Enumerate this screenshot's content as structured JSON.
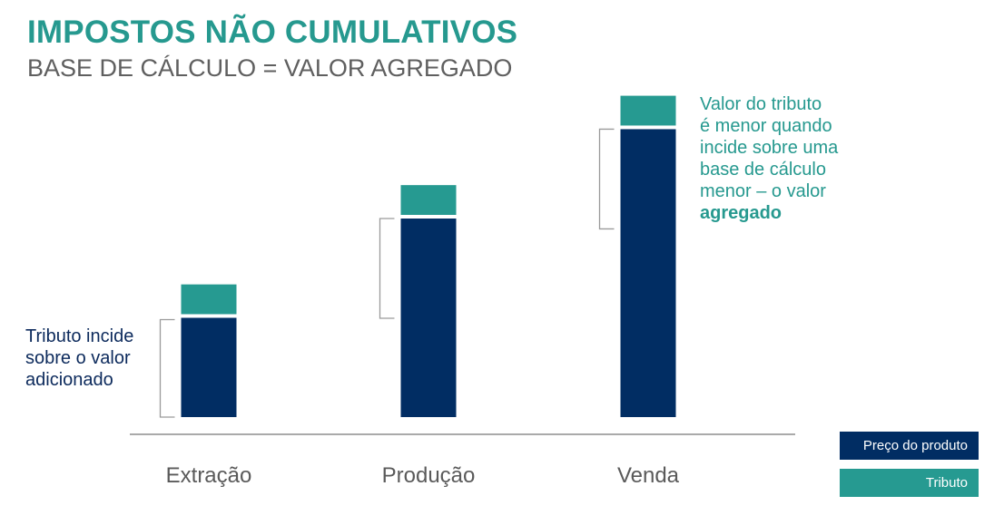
{
  "title": "IMPOSTOS NÃO CUMULATIVOS",
  "subtitle": "BASE DE CÁLCULO = VALOR AGREGADO",
  "colors": {
    "price": "#012d63",
    "tax": "#269a91",
    "title": "#26998f",
    "subtitle": "#5f5f5f",
    "axis": "#555555",
    "bracket": "#9a9a9a"
  },
  "chart_data": {
    "type": "bar",
    "stacked": true,
    "categories": [
      "Extração",
      "Produção",
      "Venda"
    ],
    "series": [
      {
        "name": "Preço do produto",
        "values": [
          1.0,
          2.0,
          2.9
        ]
      },
      {
        "name": "Tributo",
        "values": [
          0.3,
          0.3,
          0.3
        ]
      }
    ],
    "value_unit": "relative (no numeric axis shown)",
    "ylim": [
      0,
      3.3
    ],
    "grid": false,
    "legend_position": "bottom-right",
    "annotations": {
      "left": [
        "Tributo incide",
        "sobre o valor",
        "adicionado"
      ],
      "right_lines": [
        "Valor do tributo",
        "é menor quando",
        "incide sobre uma",
        "base de cálculo",
        "menor – o valor"
      ],
      "right_bold": "agregado"
    }
  }
}
